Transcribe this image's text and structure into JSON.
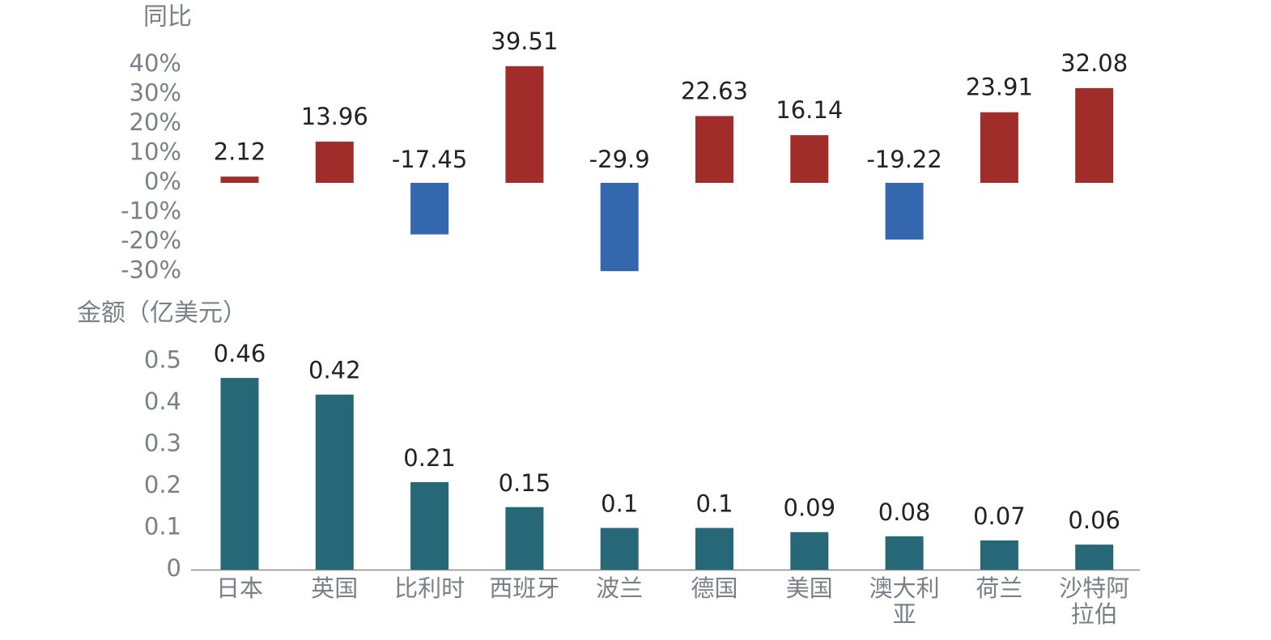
{
  "chart_data": [
    {
      "type": "bar",
      "ylabel": "同比",
      "ylim": [
        -30,
        40
      ],
      "yticks": [
        "40%",
        "30%",
        "20%",
        "10%",
        "0%",
        "-10%",
        "-20%",
        "-30%"
      ],
      "categories": [
        "日本",
        "英国",
        "比利时",
        "西班牙",
        "波兰",
        "德国",
        "美国",
        "澳大利亚",
        "荷兰",
        "沙特阿拉伯"
      ],
      "values": [
        2.12,
        13.96,
        -17.45,
        39.51,
        -29.9,
        22.63,
        16.14,
        -19.22,
        23.91,
        32.08
      ],
      "value_labels": [
        "2.12",
        "13.96",
        "-17.45",
        "39.51",
        "-29.9",
        "22.63",
        "16.14",
        "-19.22",
        "23.91",
        "32.08"
      ],
      "colors": {
        "positive": "#a12d2b",
        "negative": "#3467ae"
      },
      "grid": false
    },
    {
      "type": "bar",
      "ylabel": "金额（亿美元）",
      "ylim": [
        0,
        0.5
      ],
      "yticks": [
        "0.5",
        "0.4",
        "0.3",
        "0.2",
        "0.1",
        "0"
      ],
      "categories": [
        "日本",
        "英国",
        "比利时",
        "西班牙",
        "波兰",
        "德国",
        "美国",
        "澳大利亚",
        "荷兰",
        "沙特阿拉伯"
      ],
      "category_lines": [
        [
          "日本"
        ],
        [
          "英国"
        ],
        [
          "比利时"
        ],
        [
          "西班牙"
        ],
        [
          "波兰"
        ],
        [
          "德国"
        ],
        [
          "美国"
        ],
        [
          "澳大利",
          "亚"
        ],
        [
          "荷兰"
        ],
        [
          "沙特阿",
          "拉伯"
        ]
      ],
      "values": [
        0.46,
        0.42,
        0.21,
        0.15,
        0.1,
        0.1,
        0.09,
        0.08,
        0.07,
        0.06
      ],
      "value_labels": [
        "0.46",
        "0.42",
        "0.21",
        "0.15",
        "0.1",
        "0.1",
        "0.09",
        "0.08",
        "0.07",
        "0.06"
      ],
      "colors": {
        "bar": "#276878",
        "axis": "#8a8a8a"
      },
      "grid": false
    }
  ],
  "colors": {
    "tick_text": "#7a8088",
    "value_text": "#222222"
  }
}
